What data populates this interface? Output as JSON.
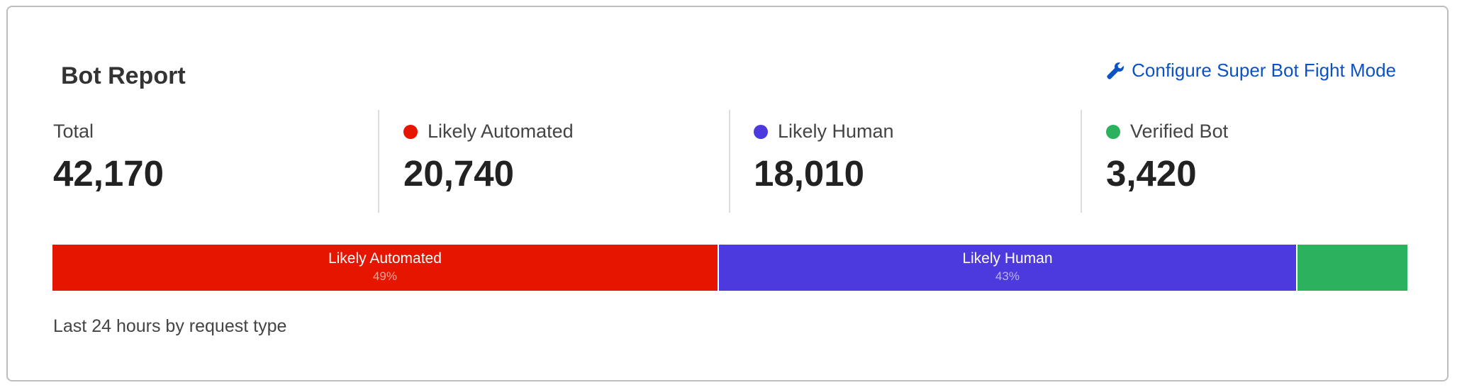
{
  "title": "Bot Report",
  "configure_link": {
    "label": "Configure Super Bot Fight Mode",
    "icon": "wrench-icon",
    "color": "#0b52c4"
  },
  "stats": [
    {
      "label": "Total",
      "value": "42,170",
      "color": null
    },
    {
      "label": "Likely Automated",
      "value": "20,740",
      "color": "#e61500"
    },
    {
      "label": "Likely Human",
      "value": "18,010",
      "color": "#4d3adf"
    },
    {
      "label": "Verified Bot",
      "value": "3,420",
      "color": "#2cb15e"
    }
  ],
  "bar": [
    {
      "label": "Likely Automated",
      "percent_label": "49%",
      "value": 20740,
      "color": "#e61500"
    },
    {
      "label": "Likely Human",
      "percent_label": "43%",
      "value": 18010,
      "color": "#4d3adf"
    },
    {
      "label": "",
      "percent_label": "",
      "value": 3420,
      "color": "#2cb15e"
    }
  ],
  "footer": "Last 24 hours by request type"
}
